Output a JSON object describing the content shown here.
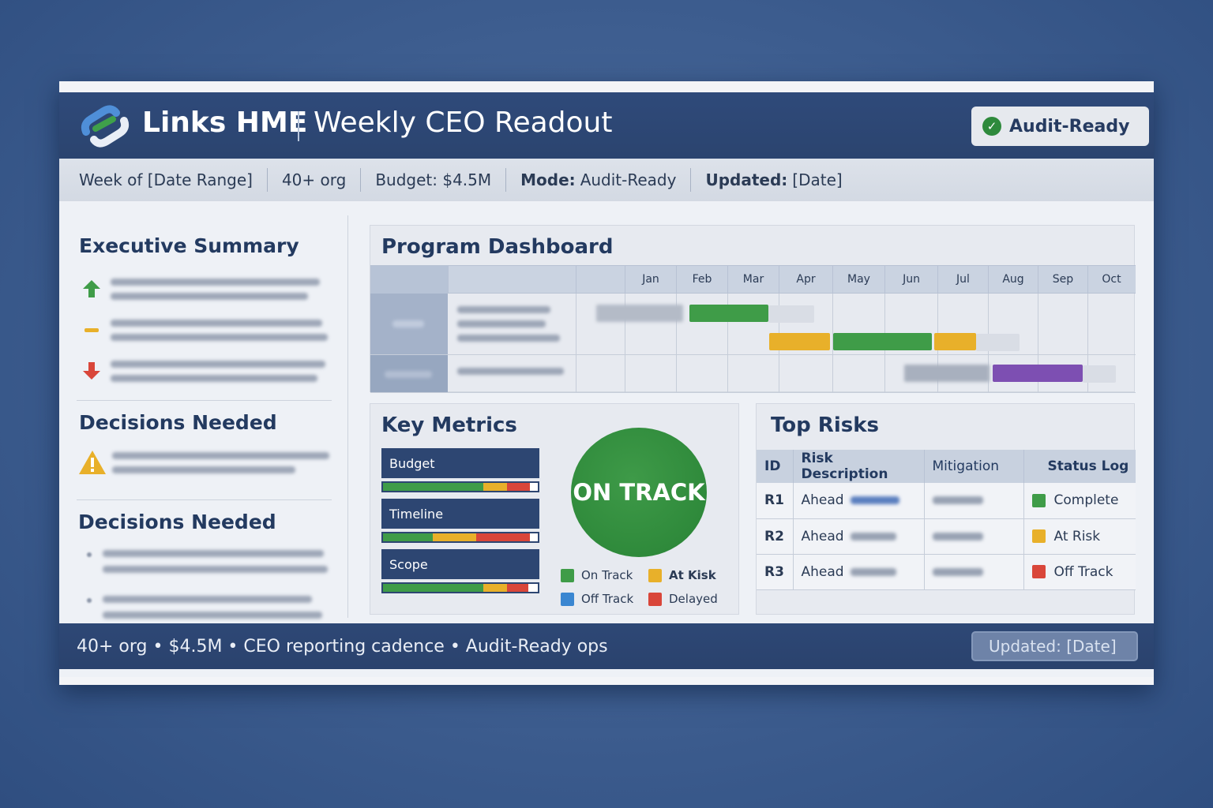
{
  "header": {
    "brand": "Links HME",
    "title": "Weekly CEO Readout",
    "badge": "Audit-Ready"
  },
  "meta": {
    "week": "Week of [Date Range]",
    "org": "40+ org",
    "budget": "Budget: $4.5M",
    "mode_label": "Mode:",
    "mode_value": "Audit-Ready",
    "updated_label": "Updated:",
    "updated_value": "[Date]"
  },
  "left": {
    "summary_title": "Executive Summary",
    "decisions_title_1": "Decisions Needed",
    "decisions_title_2": "Decisions Needed"
  },
  "program": {
    "title": "Program Dashboard",
    "months": [
      "Jan",
      "Feb",
      "Mar",
      "Apr",
      "May",
      "Jun",
      "Jul",
      "Aug",
      "Sep",
      "Oct"
    ]
  },
  "metrics": {
    "title": "Key Metrics",
    "items": [
      {
        "label": "Budget"
      },
      {
        "label": "Timeline"
      },
      {
        "label": "Scope"
      }
    ],
    "status": "ON TRACK",
    "legend": [
      {
        "label": "On Track",
        "color": "#3f9c48"
      },
      {
        "label": "At Kisk",
        "color": "#e8b02a"
      },
      {
        "label": "Off Track",
        "color": "#3a86d1"
      },
      {
        "label": "Delayed",
        "color": "#d9463a"
      }
    ]
  },
  "risks": {
    "title": "Top Risks",
    "columns": [
      "ID",
      "Risk Description",
      "Mitigation",
      "Status Log"
    ],
    "rows": [
      {
        "id": "R1",
        "desc": "Ahead",
        "status": "Complete",
        "color": "#3f9c48"
      },
      {
        "id": "R2",
        "desc": "Ahead",
        "status": "At Risk",
        "color": "#e8b02a"
      },
      {
        "id": "R3",
        "desc": "Ahead",
        "status": "Off Track",
        "color": "#d9463a"
      }
    ]
  },
  "footer": {
    "text": "40+ org • $4.5M • CEO reporting cadence • Audit-Ready ops",
    "updated": "Updated: [Date]"
  },
  "colors": {
    "navy": "#2b446f",
    "green": "#3f9c48",
    "amber": "#e8b02a",
    "red": "#d9463a",
    "purple": "#7d4fb2"
  }
}
